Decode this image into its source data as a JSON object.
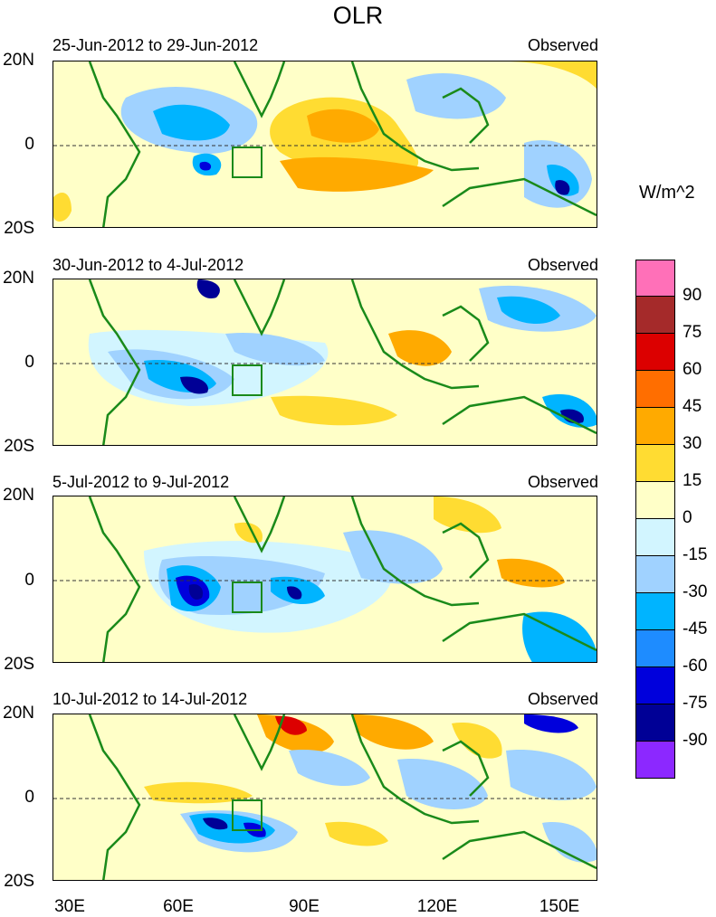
{
  "title": "OLR",
  "units": "W/m^2",
  "panels": [
    {
      "period": "25-Jun-2012 to 29-Jun-2012",
      "kind": "Observed"
    },
    {
      "period": "30-Jun-2012 to 4-Jul-2012",
      "kind": "Observed"
    },
    {
      "period": "5-Jul-2012 to 9-Jul-2012",
      "kind": "Observed"
    },
    {
      "period": "10-Jul-2012 to 14-Jul-2012",
      "kind": "Observed"
    }
  ],
  "lat_labels": [
    "20N",
    "0",
    "20S"
  ],
  "lon_labels": [
    "30E",
    "60E",
    "90E",
    "120E",
    "150E"
  ],
  "colorbar": {
    "labels": [
      "90",
      "75",
      "60",
      "45",
      "30",
      "15",
      "0",
      "-15",
      "-30",
      "-45",
      "-60",
      "-75",
      "-90"
    ],
    "colors": [
      "#ff70b8",
      "#a52a2a",
      "#dc0000",
      "#ff6e00",
      "#ffaa00",
      "#ffdc32",
      "#ffffc8",
      "#d2f5ff",
      "#a0d2ff",
      "#00b4ff",
      "#1e8cff",
      "#0000dc",
      "#000096",
      "#8c28ff"
    ]
  },
  "colors": {
    "land_outline": "#1a8a1a",
    "box_outline": "#1a8a1a"
  }
}
